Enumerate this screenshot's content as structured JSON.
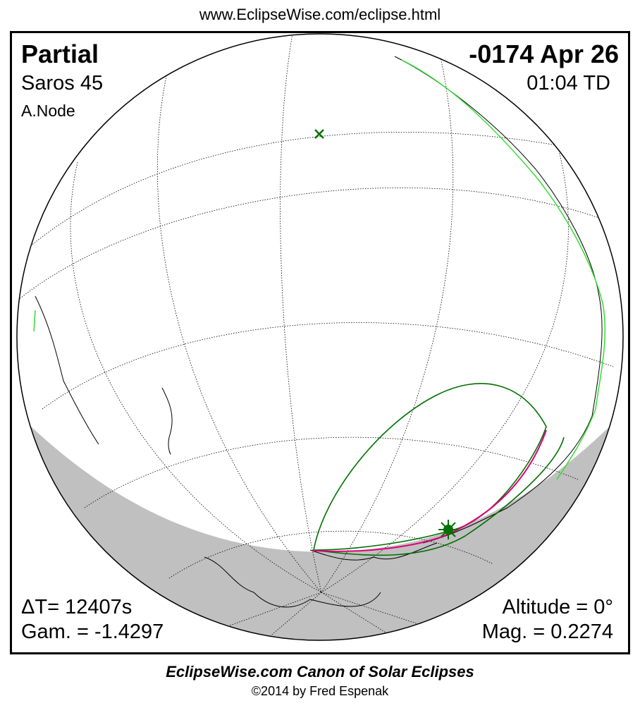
{
  "header_url": "www.EclipseWise.com/eclipse.html",
  "eclipse": {
    "type": "Partial",
    "date": "-0174 Apr 26",
    "saros": "Saros  45",
    "time": "01:04 TD",
    "node": "A.Node",
    "delta_t": "ΔT=  12407s",
    "gamma": "Gam. = -1.4297",
    "altitude": "Altitude =  0°",
    "magnitude": "Mag. = 0.2274"
  },
  "map": {
    "colors": {
      "night": "#c0c0c0",
      "penumbra_limit": "#007000",
      "max_eclipse_line": "#e0007a",
      "coastline_highlight": "#33dd33"
    },
    "markers": [
      "greatest-eclipse-sun-icon",
      "sub-lunar-point-x-icon"
    ]
  },
  "footer": {
    "title": "EclipseWise.com Canon of Solar Eclipses",
    "copyright": "©2014 by Fred Espenak"
  }
}
